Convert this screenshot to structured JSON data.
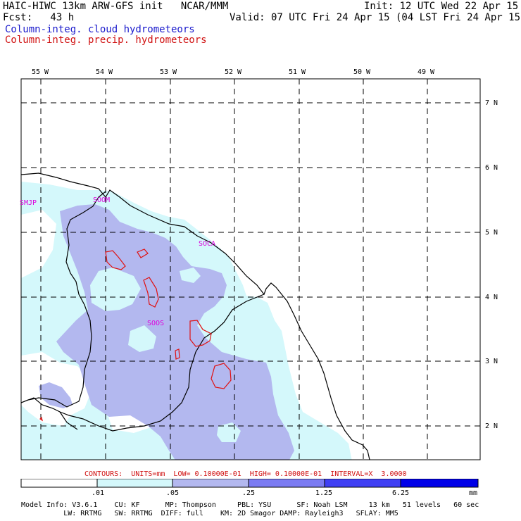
{
  "header": {
    "title": "HAIC-HIWC 13km ARW-GFS init   NCAR/MMM",
    "init": "Init: 12 UTC Wed 22 Apr 15",
    "fcst": "Fcst:   43 h",
    "valid": "Valid: 07 UTC Fri 24 Apr 15 (04 LST Fri 24 Apr 15)",
    "field1": "Column-integ. cloud hydrometeors",
    "field2": "Column-integ. precip. hydrometeors"
  },
  "lon_labels": [
    "55 W",
    "54 W",
    "53 W",
    "52 W",
    "51 W",
    "50 W",
    "49 W"
  ],
  "lat_labels": [
    "7 N",
    "6 N",
    "5 N",
    "4 N",
    "3 N",
    "2 N"
  ],
  "stations": [
    "SMJP",
    "SOOM",
    "SOCA",
    "SOOS"
  ],
  "contours_line": "CONTOURS:  UNITS=mm  LOW= 0.10000E-01  HIGH= 0.10000E-01  INTERVAL=X  3.0000",
  "colorbar": {
    "labels": [
      ".01",
      ".05",
      ".25",
      "1.25",
      "6.25",
      "mm"
    ],
    "colors": [
      "#ffffff",
      "#d4f8fb",
      "#b3b8ef",
      "#7b7bf2",
      "#4040f4",
      "#0000e8"
    ]
  },
  "colors": {
    "cloud_light": "#d4f8fb",
    "cloud_dark": "#b3b8ef",
    "precip": "#e01010",
    "label": "#dd00dd"
  },
  "footer": {
    "line1": "Model Info: V3.6.1    CU: KF      MP: Thompson     PBL: YSU      SF: Noah LSM     13 km   51 levels   60 sec",
    "line2": "          LW: RRTMG   SW: RRTMG  DIFF: full    KM: 2D Smagor DAMP: Rayleigh3   SFLAY: MM5"
  }
}
